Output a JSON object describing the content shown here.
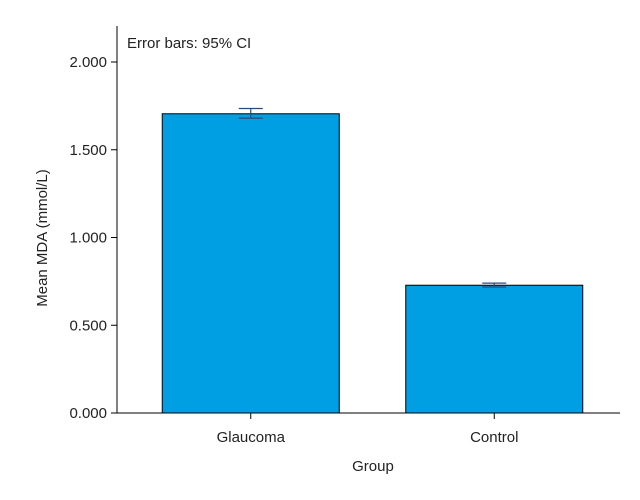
{
  "chart_data": {
    "type": "bar",
    "categories": [
      "Glaucoma",
      "Control"
    ],
    "values": [
      1.705,
      0.728
    ],
    "error_bars": {
      "label": "Error bars: 95% CI",
      "lower": [
        1.68,
        0.718
      ],
      "upper": [
        1.735,
        0.74
      ]
    },
    "xlabel": "Group",
    "ylabel": "Mean MDA (mmol/L)",
    "ylim": [
      0,
      2.1
    ],
    "yticks": [
      0,
      0.5,
      1,
      1.5,
      2
    ],
    "ytick_labels": [
      "0.000",
      "0.500",
      "1.000",
      "1.500",
      "2.000"
    ],
    "grid": false,
    "bar_color": "#009fe3",
    "bar_edge_color": "#000000",
    "error_bar_color": "#2b4a7a"
  }
}
